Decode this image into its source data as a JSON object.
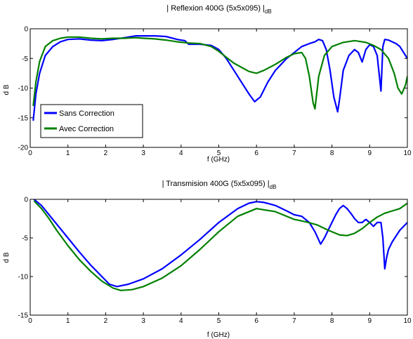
{
  "chart_data": [
    {
      "type": "line",
      "title": "| Reflexion 400G (5x5x095) |",
      "title_subscript": "dB",
      "xlabel": "f (GHz)",
      "ylabel": "d B",
      "xlim": [
        0,
        10
      ],
      "ylim": [
        -20,
        0
      ],
      "xticks": [
        0,
        1,
        2,
        3,
        4,
        5,
        6,
        7,
        8,
        9,
        10
      ],
      "yticks": [
        0,
        -5,
        -10,
        -15,
        -20
      ],
      "ytick_labels": [
        "0",
        "-5",
        "-10",
        "-15",
        "-20"
      ],
      "grid": false,
      "legend": "middle-left",
      "series": [
        {
          "name": "Sans Correction",
          "color": "#0000ff",
          "x": [
            0.08,
            0.15,
            0.25,
            0.4,
            0.6,
            0.8,
            1.0,
            1.3,
            1.6,
            1.9,
            2.2,
            2.5,
            2.8,
            3.0,
            3.3,
            3.6,
            3.9,
            4.1,
            4.2,
            4.5,
            4.8,
            5.0,
            5.2,
            5.4,
            5.6,
            5.8,
            5.95,
            6.1,
            6.3,
            6.5,
            6.8,
            7.0,
            7.2,
            7.4,
            7.55,
            7.65,
            7.75,
            7.85,
            7.95,
            8.05,
            8.15,
            8.2,
            8.3,
            8.45,
            8.6,
            8.7,
            8.8,
            8.9,
            9.0,
            9.1,
            9.2,
            9.3,
            9.35,
            9.4,
            9.5,
            9.6,
            9.7,
            9.8,
            9.9,
            10.0
          ],
          "y": [
            -15.5,
            -11.0,
            -7.5,
            -4.5,
            -3.0,
            -2.2,
            -1.8,
            -1.7,
            -1.9,
            -2.0,
            -1.8,
            -1.5,
            -1.2,
            -1.2,
            -1.2,
            -1.3,
            -1.8,
            -2.0,
            -2.6,
            -2.6,
            -2.8,
            -3.5,
            -5.0,
            -7.0,
            -9.0,
            -11.0,
            -12.3,
            -11.5,
            -9.0,
            -7.0,
            -5.0,
            -4.0,
            -3.0,
            -2.5,
            -2.2,
            -1.8,
            -2.0,
            -3.5,
            -7.0,
            -11.5,
            -14.0,
            -12.0,
            -7.0,
            -4.5,
            -3.5,
            -4.0,
            -5.6,
            -3.5,
            -2.7,
            -3.0,
            -4.5,
            -10.5,
            -3.0,
            -1.8,
            -1.9,
            -2.2,
            -2.5,
            -3.0,
            -4.0,
            -5.0
          ]
        },
        {
          "name": "Avec Correction",
          "color": "#008000",
          "x": [
            0.08,
            0.15,
            0.25,
            0.4,
            0.6,
            0.8,
            1.0,
            1.3,
            1.6,
            1.9,
            2.2,
            2.5,
            2.8,
            3.0,
            3.3,
            3.6,
            3.9,
            4.2,
            4.5,
            4.8,
            5.0,
            5.2,
            5.4,
            5.6,
            5.8,
            6.0,
            6.2,
            6.5,
            6.8,
            7.0,
            7.2,
            7.3,
            7.4,
            7.5,
            7.55,
            7.65,
            7.8,
            8.0,
            8.3,
            8.6,
            8.9,
            9.1,
            9.3,
            9.5,
            9.65,
            9.75,
            9.85,
            9.95,
            10.0
          ],
          "y": [
            -13.0,
            -9.0,
            -5.5,
            -3.0,
            -2.0,
            -1.6,
            -1.4,
            -1.4,
            -1.6,
            -1.7,
            -1.6,
            -1.6,
            -1.5,
            -1.6,
            -1.7,
            -1.9,
            -2.2,
            -2.4,
            -2.5,
            -3.0,
            -3.8,
            -4.8,
            -5.8,
            -6.5,
            -7.2,
            -7.5,
            -7.0,
            -6.0,
            -4.8,
            -4.2,
            -4.0,
            -5.0,
            -8.0,
            -12.5,
            -13.5,
            -8.0,
            -4.5,
            -3.0,
            -2.3,
            -2.0,
            -2.3,
            -2.8,
            -3.5,
            -5.0,
            -7.5,
            -10.0,
            -11.0,
            -9.5,
            -8.0
          ]
        }
      ]
    },
    {
      "type": "line",
      "title": "| Transmision  400G (5x5x095) |",
      "title_subscript": "dB",
      "xlabel": "f (GHz)",
      "ylabel": "d B",
      "xlim": [
        0,
        10
      ],
      "ylim": [
        -15,
        0
      ],
      "xticks": [
        0,
        1,
        2,
        3,
        4,
        5,
        6,
        7,
        8,
        9,
        10
      ],
      "yticks": [
        0,
        -5,
        -10,
        -15
      ],
      "ytick_labels": [
        "0",
        "-5",
        "-10",
        "-15"
      ],
      "grid": false,
      "series": [
        {
          "name": "Sans Correction",
          "color": "#0000ff",
          "x": [
            0.1,
            0.3,
            0.5,
            0.7,
            1.0,
            1.3,
            1.6,
            1.9,
            2.1,
            2.3,
            2.6,
            3.0,
            3.5,
            4.0,
            4.5,
            5.0,
            5.5,
            5.8,
            6.0,
            6.2,
            6.5,
            6.8,
            7.0,
            7.2,
            7.4,
            7.55,
            7.7,
            7.8,
            7.9,
            8.0,
            8.1,
            8.2,
            8.3,
            8.4,
            8.5,
            8.6,
            8.7,
            8.8,
            8.9,
            9.0,
            9.1,
            9.2,
            9.3,
            9.35,
            9.4,
            9.45,
            9.5,
            9.6,
            9.8,
            10.0
          ],
          "y": [
            0.0,
            -0.8,
            -2.0,
            -3.2,
            -5.0,
            -6.8,
            -8.5,
            -10.0,
            -11.0,
            -11.3,
            -11.0,
            -10.3,
            -9.0,
            -7.2,
            -5.2,
            -3.0,
            -1.2,
            -0.5,
            -0.3,
            -0.4,
            -0.8,
            -1.5,
            -2.0,
            -2.2,
            -3.0,
            -4.2,
            -5.8,
            -5.0,
            -4.0,
            -3.0,
            -2.0,
            -1.2,
            -0.8,
            -1.2,
            -1.8,
            -2.5,
            -3.0,
            -3.0,
            -2.6,
            -3.0,
            -3.5,
            -3.0,
            -3.0,
            -5.0,
            -9.0,
            -7.5,
            -6.5,
            -5.5,
            -4.0,
            -3.0
          ]
        },
        {
          "name": "Avec Correction",
          "color": "#008000",
          "x": [
            0.1,
            0.3,
            0.5,
            0.7,
            1.0,
            1.3,
            1.6,
            1.9,
            2.2,
            2.4,
            2.7,
            3.0,
            3.5,
            4.0,
            4.5,
            5.0,
            5.5,
            6.0,
            6.5,
            7.0,
            7.3,
            7.6,
            7.9,
            8.2,
            8.4,
            8.6,
            8.8,
            9.0,
            9.2,
            9.4,
            9.6,
            9.8,
            10.0
          ],
          "y": [
            -0.2,
            -1.2,
            -2.5,
            -4.0,
            -6.0,
            -7.8,
            -9.3,
            -10.6,
            -11.5,
            -11.8,
            -11.7,
            -11.3,
            -10.2,
            -8.6,
            -6.5,
            -4.2,
            -2.2,
            -1.2,
            -1.6,
            -2.6,
            -2.9,
            -3.3,
            -4.0,
            -4.6,
            -4.7,
            -4.4,
            -3.8,
            -3.0,
            -2.3,
            -1.8,
            -1.5,
            -1.2,
            -0.5
          ]
        }
      ]
    }
  ]
}
